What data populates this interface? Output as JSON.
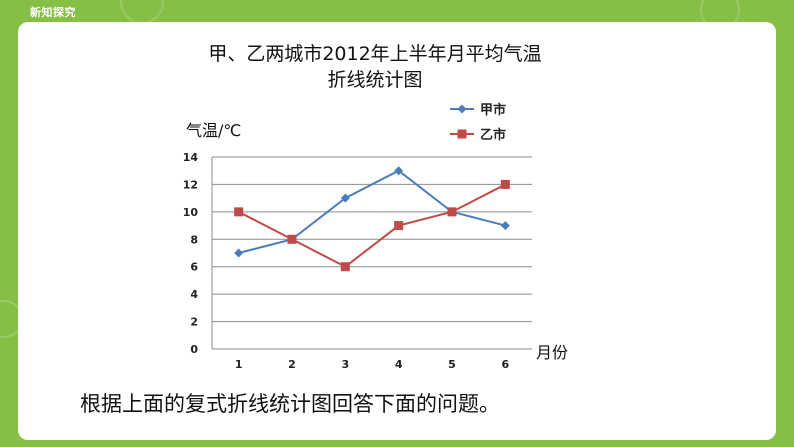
{
  "header": {
    "section_tag": "新知探究"
  },
  "prompt_text": "根据上面的复式折线统计图回答下面的问题。",
  "colors": {
    "background": "#86bf45",
    "series_jia": "#4a7ebb",
    "series_yi": "#be4b48"
  },
  "chart_data": {
    "type": "line",
    "title_line1": "甲、乙两城市2012年上半年月平均气温",
    "title_line2": "折线统计图",
    "ylabel": "气温/℃",
    "xlabel": "月份",
    "x": [
      1,
      2,
      3,
      4,
      5,
      6
    ],
    "x_tick_labels": [
      "1",
      "2",
      "3",
      "4",
      "5",
      "6"
    ],
    "y_tick_labels": [
      "0",
      "2",
      "4",
      "6",
      "8",
      "10",
      "12",
      "14"
    ],
    "ylim": [
      0,
      14
    ],
    "grid": true,
    "legend_position": "top-right",
    "series": [
      {
        "name": "甲市",
        "values": [
          7,
          8,
          11,
          13,
          10,
          9
        ],
        "marker": "diamond",
        "color": "#4a7ebb"
      },
      {
        "name": "乙市",
        "values": [
          10,
          8,
          6,
          9,
          10,
          12
        ],
        "marker": "square",
        "color": "#be4b48"
      }
    ]
  }
}
